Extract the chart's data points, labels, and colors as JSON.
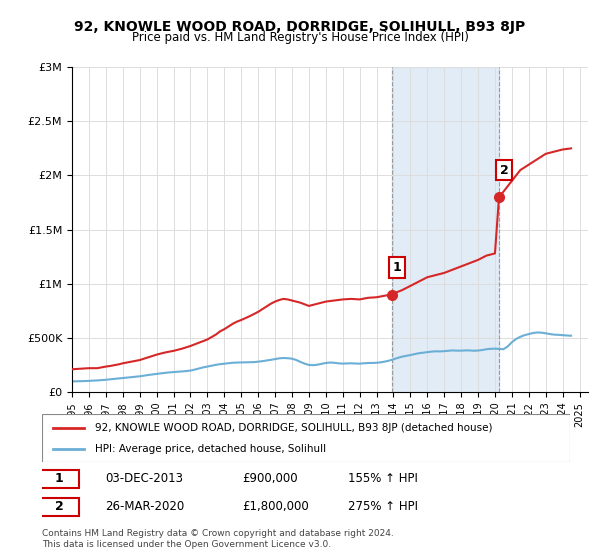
{
  "title": "92, KNOWLE WOOD ROAD, DORRIDGE, SOLIHULL, B93 8JP",
  "subtitle": "Price paid vs. HM Land Registry's House Price Index (HPI)",
  "xlim_start": 1995.0,
  "xlim_end": 2025.5,
  "ylim_min": 0,
  "ylim_max": 3000000,
  "yticks": [
    0,
    500000,
    1000000,
    1500000,
    2000000,
    2500000,
    3000000
  ],
  "ytick_labels": [
    "£0",
    "£500K",
    "£1M",
    "£1.5M",
    "£2M",
    "£2.5M",
    "£3M"
  ],
  "xticks": [
    1995,
    1996,
    1997,
    1998,
    1999,
    2000,
    2001,
    2002,
    2003,
    2004,
    2005,
    2006,
    2007,
    2008,
    2009,
    2010,
    2011,
    2012,
    2013,
    2014,
    2015,
    2016,
    2017,
    2018,
    2019,
    2020,
    2021,
    2022,
    2023,
    2024,
    2025
  ],
  "hpi_color": "#6baed6",
  "price_color": "#d62728",
  "shaded_region_color": "#c6dbef",
  "shaded_region_alpha": 0.5,
  "marker1_x": 2013.92,
  "marker1_y": 900000,
  "marker1_label": "1",
  "marker1_date": "03-DEC-2013",
  "marker1_price": "£900,000",
  "marker1_hpi": "155% ↑ HPI",
  "marker2_x": 2020.24,
  "marker2_y": 1800000,
  "marker2_label": "2",
  "marker2_date": "26-MAR-2020",
  "marker2_price": "£1,800,000",
  "marker2_hpi": "275% ↑ HPI",
  "legend_line1": "92, KNOWLE WOOD ROAD, DORRIDGE, SOLIHULL, B93 8JP (detached house)",
  "legend_line2": "HPI: Average price, detached house, Solihull",
  "footer_line1": "Contains HM Land Registry data © Crown copyright and database right 2024.",
  "footer_line2": "This data is licensed under the Open Government Licence v3.0.",
  "hpi_data_x": [
    1995.0,
    1995.25,
    1995.5,
    1995.75,
    1996.0,
    1996.25,
    1996.5,
    1996.75,
    1997.0,
    1997.25,
    1997.5,
    1997.75,
    1998.0,
    1998.25,
    1998.5,
    1998.75,
    1999.0,
    1999.25,
    1999.5,
    1999.75,
    2000.0,
    2000.25,
    2000.5,
    2000.75,
    2001.0,
    2001.25,
    2001.5,
    2001.75,
    2002.0,
    2002.25,
    2002.5,
    2002.75,
    2003.0,
    2003.25,
    2003.5,
    2003.75,
    2004.0,
    2004.25,
    2004.5,
    2004.75,
    2005.0,
    2005.25,
    2005.5,
    2005.75,
    2006.0,
    2006.25,
    2006.5,
    2006.75,
    2007.0,
    2007.25,
    2007.5,
    2007.75,
    2008.0,
    2008.25,
    2008.5,
    2008.75,
    2009.0,
    2009.25,
    2009.5,
    2009.75,
    2010.0,
    2010.25,
    2010.5,
    2010.75,
    2011.0,
    2011.25,
    2011.5,
    2011.75,
    2012.0,
    2012.25,
    2012.5,
    2012.75,
    2013.0,
    2013.25,
    2013.5,
    2013.75,
    2014.0,
    2014.25,
    2014.5,
    2014.75,
    2015.0,
    2015.25,
    2015.5,
    2015.75,
    2016.0,
    2016.25,
    2016.5,
    2016.75,
    2017.0,
    2017.25,
    2017.5,
    2017.75,
    2018.0,
    2018.25,
    2018.5,
    2018.75,
    2019.0,
    2019.25,
    2019.5,
    2019.75,
    2020.0,
    2020.25,
    2020.5,
    2020.75,
    2021.0,
    2021.25,
    2021.5,
    2021.75,
    2022.0,
    2022.25,
    2022.5,
    2022.75,
    2023.0,
    2023.25,
    2023.5,
    2023.75,
    2024.0,
    2024.25,
    2024.5
  ],
  "hpi_data_y": [
    98000,
    99000,
    100000,
    101000,
    103000,
    105000,
    107000,
    110000,
    113000,
    117000,
    121000,
    125000,
    129000,
    133000,
    137000,
    141000,
    145000,
    151000,
    157000,
    162000,
    167000,
    172000,
    177000,
    181000,
    184000,
    187000,
    190000,
    193000,
    198000,
    207000,
    217000,
    227000,
    235000,
    243000,
    251000,
    257000,
    261000,
    266000,
    270000,
    272000,
    273000,
    274000,
    275000,
    276000,
    280000,
    285000,
    291000,
    297000,
    304000,
    311000,
    314000,
    312000,
    308000,
    296000,
    278000,
    262000,
    250000,
    248000,
    252000,
    260000,
    268000,
    272000,
    270000,
    265000,
    262000,
    264000,
    265000,
    263000,
    262000,
    265000,
    268000,
    268000,
    270000,
    274000,
    281000,
    290000,
    302000,
    315000,
    326000,
    334000,
    341000,
    350000,
    358000,
    363000,
    368000,
    373000,
    376000,
    375000,
    377000,
    381000,
    384000,
    382000,
    382000,
    384000,
    384000,
    381000,
    383000,
    388000,
    395000,
    399000,
    400000,
    398000,
    395000,
    420000,
    460000,
    490000,
    510000,
    525000,
    535000,
    545000,
    550000,
    548000,
    542000,
    535000,
    530000,
    528000,
    525000,
    522000,
    520000
  ],
  "price_data_x": [
    1995.0,
    1995.5,
    1996.0,
    1996.5,
    1997.0,
    1997.25,
    1997.5,
    1997.75,
    1998.0,
    1998.5,
    1999.0,
    1999.5,
    2000.0,
    2000.5,
    2001.0,
    2001.5,
    2002.0,
    2002.5,
    2002.75,
    2003.0,
    2003.5,
    2003.75,
    2004.0,
    2004.5,
    2004.75,
    2005.0,
    2005.5,
    2005.75,
    2006.0,
    2006.5,
    2006.75,
    2007.0,
    2007.25,
    2007.5,
    2007.75,
    2008.0,
    2008.5,
    2009.0,
    2009.5,
    2010.0,
    2010.5,
    2011.0,
    2011.5,
    2012.0,
    2012.5,
    2013.0,
    2013.5,
    2013.92,
    2014.0,
    2014.5,
    2015.0,
    2015.5,
    2016.0,
    2016.5,
    2017.0,
    2017.5,
    2018.0,
    2018.5,
    2019.0,
    2019.5,
    2020.0,
    2020.24,
    2020.5,
    2021.0,
    2021.5,
    2022.0,
    2022.5,
    2023.0,
    2023.5,
    2024.0,
    2024.5
  ],
  "price_data_y": [
    210000,
    215000,
    220000,
    220000,
    235000,
    240000,
    248000,
    255000,
    265000,
    280000,
    295000,
    320000,
    345000,
    365000,
    380000,
    400000,
    425000,
    455000,
    470000,
    485000,
    530000,
    560000,
    580000,
    630000,
    650000,
    665000,
    700000,
    720000,
    740000,
    790000,
    815000,
    835000,
    850000,
    860000,
    855000,
    845000,
    825000,
    795000,
    815000,
    835000,
    845000,
    855000,
    860000,
    855000,
    870000,
    875000,
    890000,
    900000,
    910000,
    940000,
    980000,
    1020000,
    1060000,
    1080000,
    1100000,
    1130000,
    1160000,
    1190000,
    1220000,
    1260000,
    1280000,
    1800000,
    1850000,
    1950000,
    2050000,
    2100000,
    2150000,
    2200000,
    2220000,
    2240000,
    2250000
  ]
}
